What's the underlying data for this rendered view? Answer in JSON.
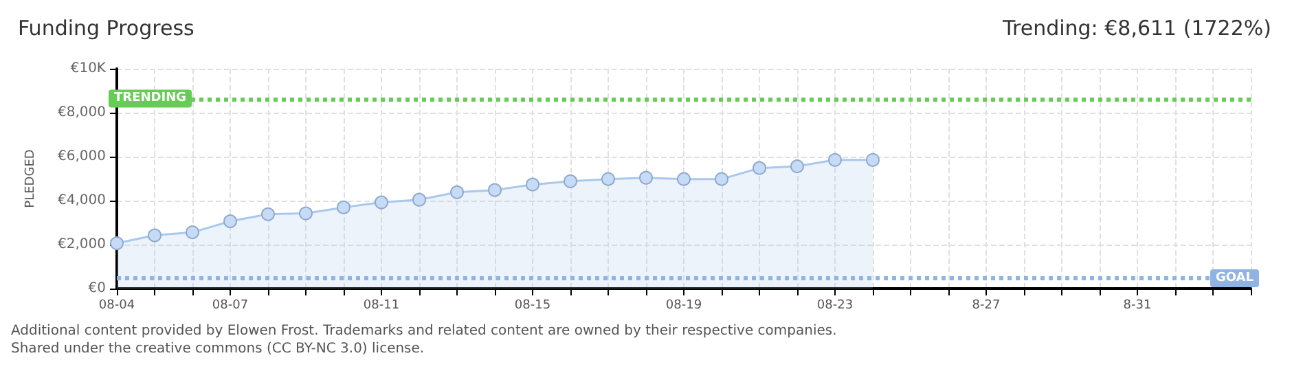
{
  "chart_data": {
    "type": "area",
    "title": "Funding Progress",
    "subtitle": "Trending: €8,611 (1722%)",
    "ylabel": "PLEDGED",
    "categories": [
      "08-04",
      null,
      null,
      "08-07",
      null,
      null,
      null,
      "08-11",
      null,
      null,
      null,
      "08-15",
      null,
      null,
      null,
      "08-19",
      null,
      null,
      null,
      "08-23",
      null,
      null,
      null,
      "8-27",
      null,
      null,
      null,
      "8-31",
      null,
      null,
      null
    ],
    "series": [
      {
        "color": "#a9c8ee",
        "values": [
          2060,
          2420,
          2560,
          3060,
          3380,
          3420,
          3690,
          3920,
          4040,
          4380,
          4480,
          4730,
          4880,
          4980,
          5040,
          4980,
          4980,
          5480,
          5560,
          5850,
          5850,
          null,
          null,
          null,
          null,
          null,
          null,
          null,
          null,
          null,
          null
        ]
      }
    ],
    "ylim": [
      0,
      10000
    ],
    "yticks": [
      {
        "value": 0,
        "label": "€0"
      },
      {
        "value": 2000,
        "label": "€2,000"
      },
      {
        "value": 4000,
        "label": "€4,000"
      },
      {
        "value": 6000,
        "label": "€6,000"
      },
      {
        "value": 8000,
        "label": "€8,000"
      },
      {
        "value": 10000,
        "label": "€10K"
      }
    ],
    "ref_lines": [
      {
        "axis": "y",
        "value": 8611,
        "label": "TRENDING",
        "color": "#66cc55",
        "line_style": "dotted"
      },
      {
        "axis": "y",
        "value": 500,
        "label": "GOAL",
        "color": "#8fb4e3",
        "line_style": "dotted"
      }
    ],
    "annotations": [
      "Additional content provided by Elowen Frost. Trademarks and related content are owned by their respective companies.",
      "Shared under the creative commons (CC BY-NC 3.0) license."
    ],
    "grid": true,
    "marker": "circle"
  }
}
